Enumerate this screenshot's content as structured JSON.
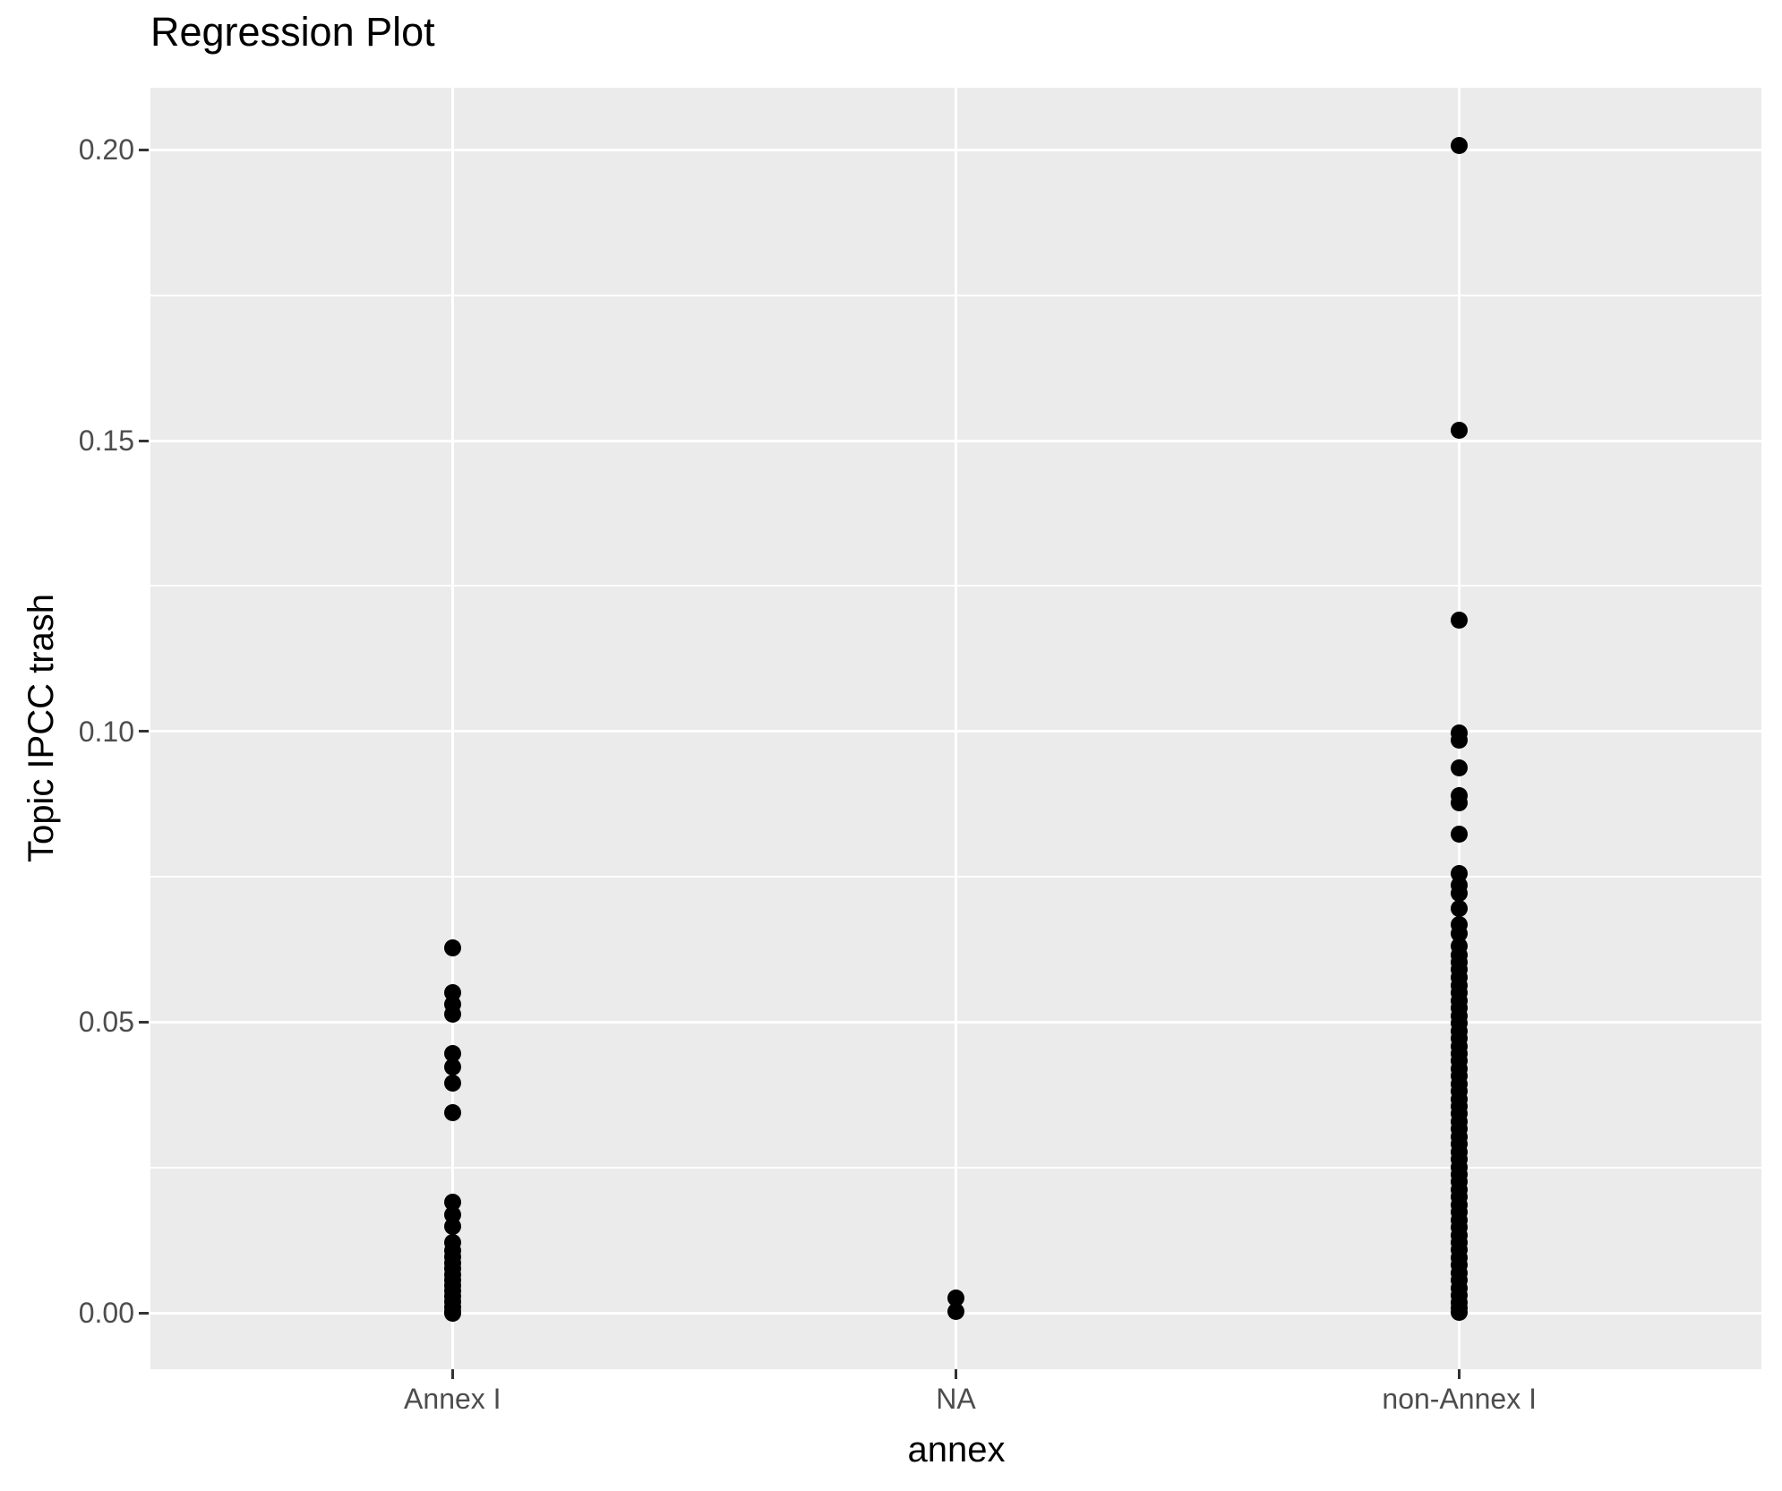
{
  "title": "Regression Plot",
  "colors": {
    "panel_background": "#EBEBEB",
    "gridline": "#FFFFFF",
    "point": "#000000",
    "tick_label": "#4D4D4D",
    "tick_mark": "#333333",
    "title_text": "#000000",
    "page_background": "#FFFFFF"
  },
  "chart_data": {
    "type": "scatter",
    "title": "Regression Plot",
    "xlabel": "annex",
    "ylabel": "Topic IPCC trash",
    "grid": true,
    "legend": false,
    "panel_background": "#EBEBEB",
    "point_color": "#000000",
    "categories": [
      "Annex I",
      "NA",
      "non-Annex I"
    ],
    "y_ticks": [
      0.0,
      0.05,
      0.1,
      0.15,
      0.2
    ],
    "y_tick_labels": [
      "0.00",
      "0.05",
      "0.10",
      "0.15",
      "0.20"
    ],
    "y_minor_ticks": [
      0.025,
      0.075,
      0.125,
      0.175
    ],
    "ylim": [
      -0.0097,
      0.2107
    ],
    "series": [
      {
        "name": "Annex I",
        "values": [
          0.0627,
          0.055,
          0.0531,
          0.0513,
          0.0446,
          0.0423,
          0.0395,
          0.0344,
          0.0191,
          0.0169,
          0.0148,
          0.0121,
          0.0107,
          0.0096,
          0.0086,
          0.0076,
          0.0066,
          0.0057,
          0.0047,
          0.0038,
          0.0028,
          0.0019,
          0.001,
          0.0003,
          0.0
        ]
      },
      {
        "name": "NA",
        "values": [
          0.0025,
          0.0002
        ]
      },
      {
        "name": "non-Annex I",
        "values": [
          0.2008,
          0.1518,
          0.1191,
          0.0997,
          0.0985,
          0.0938,
          0.089,
          0.0877,
          0.0823,
          0.0756,
          0.0736,
          0.0721,
          0.0695,
          0.0667,
          0.0653,
          0.063,
          0.0616,
          0.0603,
          0.059,
          0.0577,
          0.0563,
          0.055,
          0.0537,
          0.0524,
          0.0511,
          0.0498,
          0.0485,
          0.0472,
          0.0459,
          0.0446,
          0.0433,
          0.042,
          0.0407,
          0.0394,
          0.0381,
          0.0368,
          0.0355,
          0.0342,
          0.0329,
          0.0316,
          0.0303,
          0.029,
          0.0277,
          0.0264,
          0.0251,
          0.0238,
          0.0225,
          0.0212,
          0.0199,
          0.0186,
          0.0173,
          0.016,
          0.0147,
          0.0134,
          0.0121,
          0.0108,
          0.0095,
          0.0082,
          0.0069,
          0.0056,
          0.0043,
          0.003,
          0.0017,
          0.0008,
          0.0001
        ]
      }
    ]
  }
}
